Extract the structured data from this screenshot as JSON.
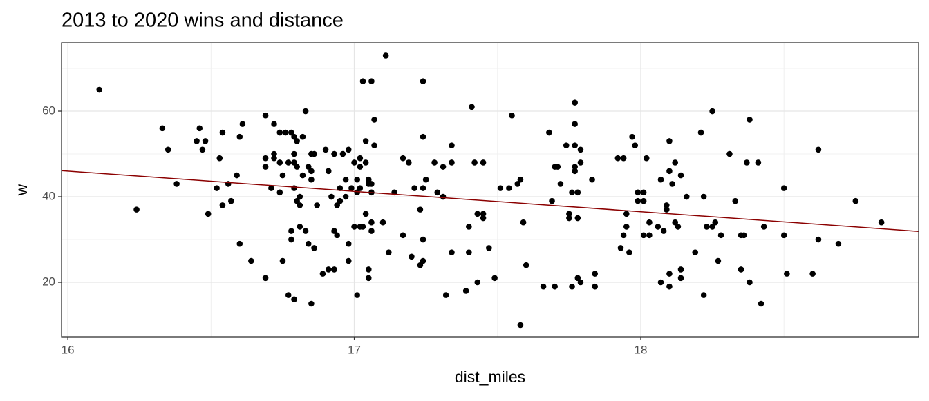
{
  "chart_data": {
    "type": "scatter",
    "title": "2013 to 2020 wins and distance",
    "x_label": "dist_miles",
    "y_label": "w",
    "xlim": [
      15.978,
      18.97
    ],
    "ylim": [
      7.26,
      75.97
    ],
    "xticks": [
      16,
      17,
      18
    ],
    "yticks": [
      20,
      40,
      60
    ],
    "minor_xticks": [
      16.5,
      17.5,
      18.5
    ],
    "minor_yticks": [
      30,
      50,
      70
    ],
    "grid": true,
    "color": "#000000",
    "x": [
      16.11,
      16.24,
      16.33,
      16.35,
      16.38,
      16.45,
      16.46,
      16.47,
      16.48,
      16.49,
      16.52,
      16.53,
      16.54,
      16.54,
      16.56,
      16.57,
      16.59,
      16.6,
      16.6,
      16.61,
      16.64,
      16.69,
      16.69,
      16.69,
      16.69,
      16.71,
      16.72,
      16.72,
      16.72,
      16.74,
      16.74,
      16.74,
      16.75,
      16.75,
      16.76,
      16.77,
      16.78,
      16.78,
      16.78,
      16.77,
      16.79,
      16.79,
      16.79,
      16.79,
      16.79,
      16.8,
      16.8,
      16.8,
      16.81,
      16.81,
      16.81,
      16.82,
      16.82,
      16.83,
      16.83,
      16.84,
      16.84,
      16.85,
      16.85,
      16.85,
      16.86,
      16.86,
      16.85,
      16.87,
      16.89,
      16.9,
      16.91,
      16.91,
      16.92,
      16.93,
      16.93,
      16.93,
      16.94,
      16.94,
      16.95,
      16.95,
      16.96,
      16.97,
      16.97,
      16.98,
      16.98,
      16.98,
      16.99,
      17.0,
      17.0,
      17.01,
      17.01,
      17.01,
      17.02,
      17.02,
      17.02,
      17.02,
      17.03,
      17.03,
      17.04,
      17.04,
      17.04,
      17.05,
      17.05,
      17.05,
      17.05,
      17.06,
      17.06,
      17.06,
      17.06,
      17.06,
      17.07,
      17.07,
      17.1,
      17.11,
      17.12,
      17.14,
      17.17,
      17.17,
      17.19,
      17.2,
      17.21,
      17.23,
      17.23,
      17.24,
      17.24,
      17.24,
      17.24,
      17.24,
      17.25,
      17.28,
      17.29,
      17.31,
      17.31,
      17.32,
      17.34,
      17.34,
      17.34,
      17.39,
      17.4,
      17.4,
      17.41,
      17.42,
      17.43,
      17.43,
      17.45,
      17.45,
      17.45,
      17.47,
      17.49,
      17.51,
      17.54,
      17.55,
      17.57,
      17.58,
      17.58,
      17.59,
      17.6,
      17.66,
      17.68,
      17.69,
      17.7,
      17.71,
      17.7,
      17.72,
      17.74,
      17.75,
      17.75,
      17.76,
      17.76,
      17.77,
      17.77,
      17.77,
      17.77,
      17.77,
      17.78,
      17.78,
      17.78,
      17.79,
      17.79,
      17.79,
      17.83,
      17.84,
      17.84,
      17.92,
      17.93,
      17.94,
      17.94,
      17.95,
      17.95,
      17.96,
      17.97,
      17.98,
      17.99,
      17.99,
      18.01,
      18.01,
      18.01,
      18.02,
      18.03,
      18.03,
      18.06,
      18.07,
      18.07,
      18.08,
      18.09,
      18.09,
      18.1,
      18.1,
      18.1,
      18.1,
      18.11,
      18.12,
      18.12,
      18.13,
      18.14,
      18.14,
      18.14,
      18.16,
      18.19,
      18.21,
      18.22,
      18.22,
      18.23,
      18.25,
      18.25,
      18.26,
      18.27,
      18.28,
      18.31,
      18.33,
      18.35,
      18.35,
      18.36,
      18.37,
      18.38,
      18.38,
      18.41,
      18.42,
      18.43,
      18.5,
      18.5,
      18.51,
      18.6,
      18.62,
      18.62,
      18.69,
      18.75,
      18.84
    ],
    "values": [
      65,
      37,
      56,
      51,
      43,
      53,
      56,
      51,
      53,
      36,
      42,
      49,
      55,
      38,
      43,
      39,
      45,
      29,
      54,
      57,
      25,
      59,
      49,
      47,
      21,
      42,
      49,
      57,
      50,
      55,
      48,
      41,
      25,
      45,
      55,
      48,
      55,
      32,
      30,
      17,
      16,
      48,
      50,
      42,
      54,
      47,
      53,
      39,
      40,
      38,
      33,
      54,
      45,
      60,
      32,
      29,
      47,
      44,
      46,
      50,
      28,
      50,
      15,
      38,
      22,
      51,
      46,
      23,
      40,
      50,
      32,
      23,
      31,
      38,
      42,
      39,
      50,
      44,
      40,
      51,
      29,
      25,
      42,
      33,
      48,
      44,
      41,
      17,
      33,
      42,
      47,
      49,
      67,
      33,
      48,
      36,
      53,
      43,
      44,
      23,
      21,
      67,
      34,
      32,
      41,
      43,
      58,
      52,
      34,
      73,
      27,
      41,
      49,
      31,
      48,
      26,
      42,
      24,
      37,
      67,
      54,
      25,
      30,
      42,
      44,
      48,
      41,
      40,
      47,
      17,
      52,
      48,
      27,
      18,
      33,
      27,
      61,
      48,
      20,
      36,
      48,
      36,
      35,
      28,
      21,
      42,
      42,
      59,
      43,
      44,
      10,
      34,
      24,
      19,
      55,
      39,
      47,
      47,
      19,
      43,
      52,
      35,
      36,
      19,
      41,
      62,
      57,
      52,
      46,
      47,
      41,
      35,
      21,
      20,
      48,
      51,
      44,
      22,
      19,
      49,
      28,
      49,
      31,
      33,
      36,
      27,
      54,
      52,
      41,
      39,
      41,
      39,
      31,
      49,
      31,
      34,
      33,
      44,
      20,
      32,
      38,
      37,
      53,
      22,
      19,
      46,
      43,
      34,
      48,
      33,
      21,
      23,
      45,
      40,
      27,
      55,
      40,
      17,
      33,
      60,
      33,
      34,
      25,
      31,
      50,
      39,
      23,
      31,
      31,
      48,
      58,
      20,
      48,
      15,
      33,
      42,
      31,
      22,
      22,
      51,
      30,
      29,
      39,
      34
    ],
    "trend_line": {
      "x": [
        15.978,
        18.97
      ],
      "values": [
        46.1,
        31.9
      ],
      "color": "#8b0000"
    }
  }
}
